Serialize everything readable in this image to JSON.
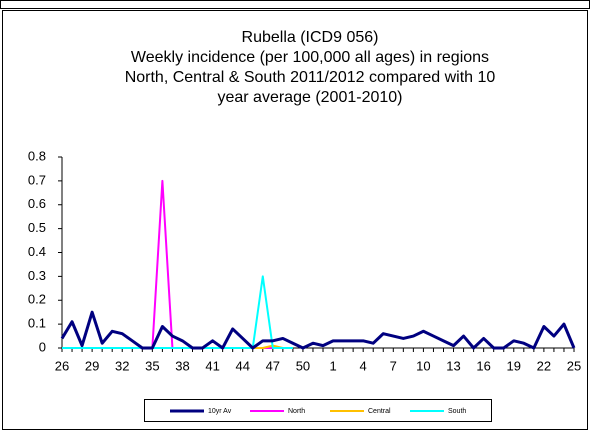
{
  "chart_data": {
    "type": "line",
    "title": [
      "Rubella (ICD9 056)",
      "Weekly incidence (per 100,000 all ages) in regions",
      "North, Central & South 2011/2012 compared with 10",
      "year average (2001-2010)"
    ],
    "categories": [
      "26",
      null,
      null,
      "29",
      null,
      null,
      "32",
      null,
      null,
      "35",
      null,
      null,
      "38",
      null,
      null,
      "41",
      null,
      null,
      "44",
      null,
      null,
      "47",
      null,
      null,
      "50",
      null,
      null,
      "1",
      null,
      null,
      "4",
      null,
      null,
      "7",
      null,
      null,
      "10",
      null,
      null,
      "13",
      null,
      null,
      "16",
      null,
      null,
      "19",
      null,
      null,
      "22",
      null,
      null,
      "25"
    ],
    "series": [
      {
        "name": "10yr Av",
        "color": "#000080",
        "values": [
          0.04,
          0.11,
          0.01,
          0.15,
          0.02,
          0.07,
          0.06,
          0.03,
          0.0,
          0.0,
          0.09,
          0.05,
          0.03,
          0.0,
          0.0,
          0.03,
          0.0,
          0.08,
          0.04,
          0.0,
          0.03,
          0.03,
          0.04,
          0.02,
          0.0,
          0.02,
          0.01,
          0.03,
          0.03,
          0.03,
          0.03,
          0.02,
          0.06,
          0.05,
          0.04,
          0.05,
          0.07,
          0.05,
          0.03,
          0.01,
          0.05,
          0.0,
          0.04,
          0.0,
          0.0,
          0.03,
          0.02,
          0.0,
          0.09,
          0.05,
          0.1,
          0.0
        ]
      },
      {
        "name": "North",
        "color": "#ff00ff",
        "values": [
          0,
          0,
          0,
          0,
          0,
          0,
          0,
          0,
          0,
          0,
          0.7,
          0,
          0,
          0,
          0,
          0,
          0,
          0,
          0,
          0,
          0,
          0,
          0,
          0,
          null,
          null,
          null,
          null,
          null,
          null,
          null,
          null,
          null,
          null,
          null,
          null,
          null,
          null,
          null,
          null,
          null,
          null,
          null,
          null,
          null,
          null,
          null,
          null,
          null,
          null,
          null,
          null
        ]
      },
      {
        "name": "Central",
        "color": "#ffc000",
        "values": [
          0,
          0,
          0,
          0,
          0,
          0,
          0,
          0,
          0,
          0,
          0,
          0,
          0,
          0,
          0,
          0,
          0,
          0,
          0,
          0,
          0,
          0.01,
          0,
          0,
          null,
          null,
          null,
          null,
          null,
          null,
          null,
          null,
          null,
          null,
          null,
          null,
          null,
          null,
          null,
          null,
          null,
          null,
          null,
          null,
          null,
          null,
          null,
          null,
          null,
          null,
          null,
          null
        ]
      },
      {
        "name": "South",
        "color": "#00ffff",
        "values": [
          0,
          0,
          0,
          0,
          0,
          0,
          0,
          0,
          0,
          0,
          0,
          0,
          0,
          0,
          0,
          0,
          0,
          0,
          0,
          0,
          0.3,
          0,
          0,
          0,
          null,
          null,
          null,
          null,
          null,
          null,
          null,
          null,
          null,
          null,
          null,
          null,
          null,
          null,
          null,
          null,
          null,
          null,
          null,
          null,
          null,
          null,
          null,
          null,
          null,
          null,
          null,
          null
        ]
      }
    ],
    "ylim": [
      0,
      0.8
    ],
    "yticks": [
      0,
      0.1,
      0.2,
      0.3,
      0.4,
      0.5,
      0.6,
      0.7,
      0.8
    ],
    "grid": false
  }
}
